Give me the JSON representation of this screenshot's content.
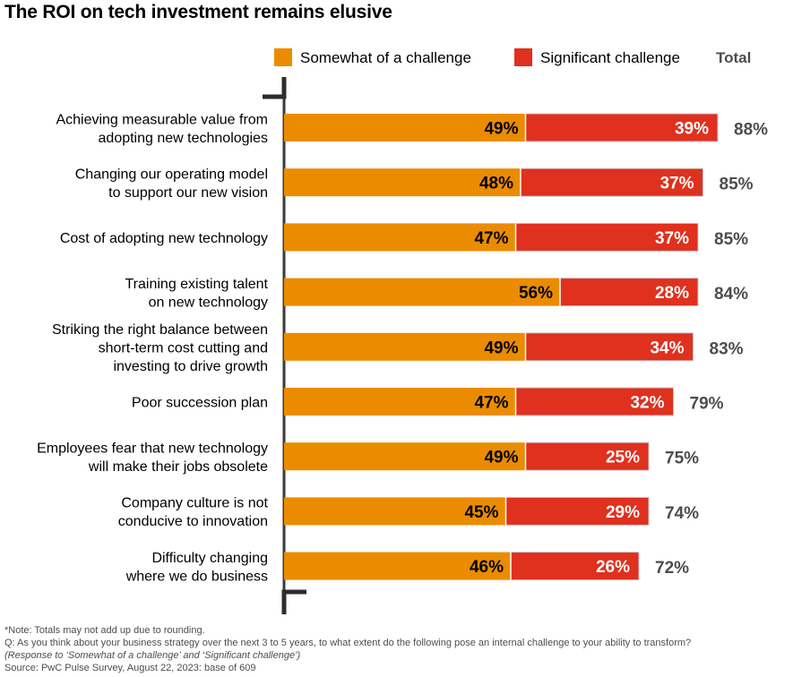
{
  "title": "The ROI on tech investment remains elusive",
  "legend": {
    "somewhat": "Somewhat of a challenge",
    "significant": "Significant challenge",
    "total": "Total"
  },
  "colors": {
    "somewhat": "#eb8c00",
    "significant": "#e0301e",
    "total_text": "#4d4d4d"
  },
  "chart_data": {
    "type": "bar",
    "orientation": "horizontal",
    "stacked": true,
    "categories": [
      [
        "Achieving measurable value from",
        "adopting new technologies"
      ],
      [
        "Changing our operating model",
        "to support our new vision"
      ],
      [
        "Cost of adopting new technology"
      ],
      [
        "Training existing talent",
        "on new technology"
      ],
      [
        "Striking the right balance between",
        "short-term cost cutting and",
        "investing to drive growth"
      ],
      [
        "Poor succession plan"
      ],
      [
        "Employees fear that new technology",
        "will make their jobs obsolete"
      ],
      [
        "Company culture is not",
        "conducive to innovation"
      ],
      [
        "Difficulty changing",
        "where we do business"
      ]
    ],
    "series": [
      {
        "name": "Somewhat of a challenge",
        "values": [
          49,
          48,
          47,
          56,
          49,
          47,
          49,
          45,
          46
        ]
      },
      {
        "name": "Significant challenge",
        "values": [
          39,
          37,
          37,
          28,
          34,
          32,
          25,
          29,
          26
        ]
      }
    ],
    "totals": [
      88,
      85,
      85,
      84,
      83,
      79,
      75,
      74,
      72
    ],
    "value_suffix": "%",
    "legend_position": "top-right"
  },
  "notes": [
    "*Note: Totals may not add up due to rounding.",
    "Q: As you think about your business strategy over the next 3 to 5 years, to what extent do the following pose an internal challenge to your ability to transform?",
    "(Response to ‘Somewhat of a challenge’ and ‘Significant challenge’)",
    "Source: PwC Pulse Survey, August 22, 2023: base of 609"
  ]
}
